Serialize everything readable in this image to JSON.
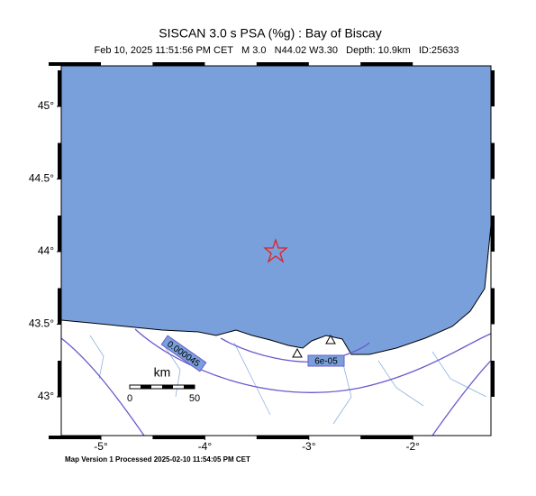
{
  "header": {
    "title": "SISCAN 3.0 s PSA (%g) : Bay of Biscay",
    "subtitle": "Feb 10, 2025 11:51:56 PM CET   M 3.0   N44.02 W3.30   Depth: 10.9km   ID:25633"
  },
  "map": {
    "lat_ticks": [
      {
        "value": 45,
        "label": "45°"
      },
      {
        "value": 44.5,
        "label": "44.5°"
      },
      {
        "value": 44,
        "label": "44°"
      },
      {
        "value": 43.5,
        "label": "43.5°"
      },
      {
        "value": 43,
        "label": "43°"
      }
    ],
    "lon_ticks": [
      {
        "value": -5,
        "label": "-5°"
      },
      {
        "value": -4,
        "label": "-4°"
      },
      {
        "value": -3,
        "label": "-3°"
      },
      {
        "value": -2,
        "label": "-2°"
      }
    ],
    "contour_labels": [
      "0.000045",
      "6e-05"
    ],
    "scale_bar": {
      "unit": "km",
      "start": "0",
      "end": "50"
    }
  },
  "footer": "Map Version 1 Processed 2025-02-10 11:54:05 PM CET"
}
